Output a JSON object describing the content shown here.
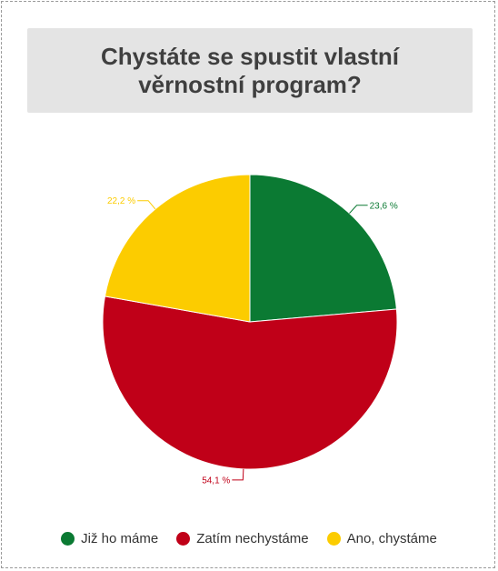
{
  "chart_data": {
    "type": "pie",
    "title": "Chystáte se spustit vlastní věrnostní program?",
    "slices": [
      {
        "name": "Již ho máme",
        "value": 23.6,
        "label": "23,6 %",
        "color": "#0b7a33"
      },
      {
        "name": "Zatím nechystáme",
        "value": 54.1,
        "label": "54,1 %",
        "color": "#c00018"
      },
      {
        "name": "Ano, chystáme",
        "value": 22.2,
        "label": "22,2 %",
        "color": "#fccc00"
      }
    ],
    "start_angle_deg": 0,
    "direction": "clockwise",
    "legend_position": "bottom"
  }
}
